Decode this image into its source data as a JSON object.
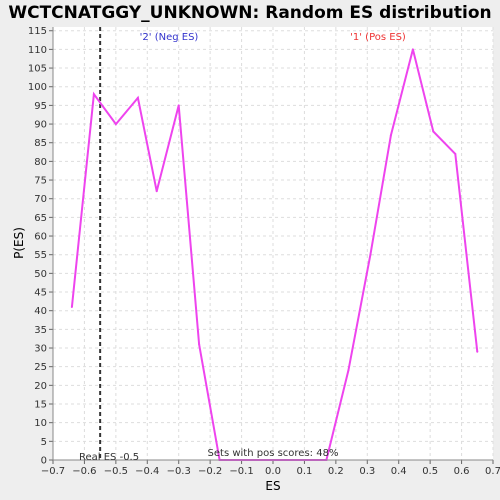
{
  "chart_data": {
    "type": "line",
    "title": "WCTCNATGGY_UNKNOWN: Random ES distribution",
    "xlabel": "ES",
    "ylabel": "P(ES)",
    "xlim": [
      -0.7,
      0.7
    ],
    "ylim": [
      0,
      116
    ],
    "x_ticks": [
      "-0.7",
      "-0.6",
      "-0.5",
      "-0.4",
      "-0.3",
      "-0.2",
      "-0.1",
      "0.0",
      "0.1",
      "0.2",
      "0.3",
      "0.4",
      "0.5",
      "0.6",
      "0.7"
    ],
    "y_ticks": [
      "0",
      "5",
      "10",
      "15",
      "20",
      "25",
      "30",
      "35",
      "40",
      "45",
      "50",
      "55",
      "60",
      "65",
      "70",
      "75",
      "80",
      "85",
      "90",
      "95",
      "100",
      "105",
      "110",
      "115"
    ],
    "grid": true,
    "series": [
      {
        "color": "#ee44ee",
        "points": [
          [
            -0.64,
            41
          ],
          [
            -0.57,
            98
          ],
          [
            -0.5,
            90
          ],
          [
            -0.43,
            97
          ],
          [
            -0.37,
            72
          ],
          [
            -0.3,
            95
          ],
          [
            -0.235,
            31
          ],
          [
            -0.17,
            0
          ],
          [
            0.17,
            0
          ],
          [
            0.24,
            24
          ],
          [
            0.31,
            55
          ],
          [
            0.375,
            87
          ],
          [
            0.445,
            110
          ],
          [
            0.51,
            88
          ],
          [
            0.58,
            82
          ],
          [
            0.65,
            29
          ]
        ]
      }
    ],
    "real_es": {
      "value": -0.55,
      "label": "Real ES -0.5"
    },
    "annotations": {
      "neg_label": "'2' (Neg ES)",
      "pos_label": "'1' (Pos ES)",
      "pos_scores": "Sets with pos scores: 48%"
    },
    "colors": {
      "neg_label": "#3333cc",
      "pos_label": "#ee3333",
      "line": "#ee44ee",
      "grid": "#dddddd"
    }
  }
}
